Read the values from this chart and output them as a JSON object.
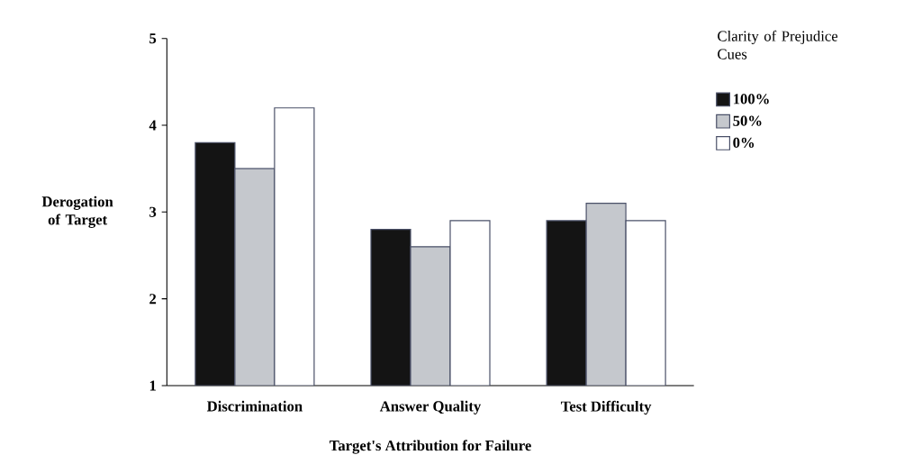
{
  "chart_data": {
    "type": "bar",
    "xlabel": "Target's Attribution for Failure",
    "ylabel": "Derogation of Target",
    "legend_title": "Clarity of Prejudice Cues",
    "legend": "right",
    "categories": [
      "Discrimination",
      "Answer Quality",
      "Test Difficulty"
    ],
    "series": [
      {
        "name": "100%",
        "color": "#141414",
        "values": [
          3.8,
          2.8,
          2.9
        ]
      },
      {
        "name": "50%",
        "color": "#c5c8cd",
        "values": [
          3.5,
          2.6,
          3.1
        ]
      },
      {
        "name": "0%",
        "color": "#ffffff",
        "values": [
          4.2,
          2.9,
          2.9
        ]
      }
    ],
    "ylim": [
      1,
      5
    ],
    "yticks": [
      1,
      2,
      3,
      4,
      5
    ]
  }
}
